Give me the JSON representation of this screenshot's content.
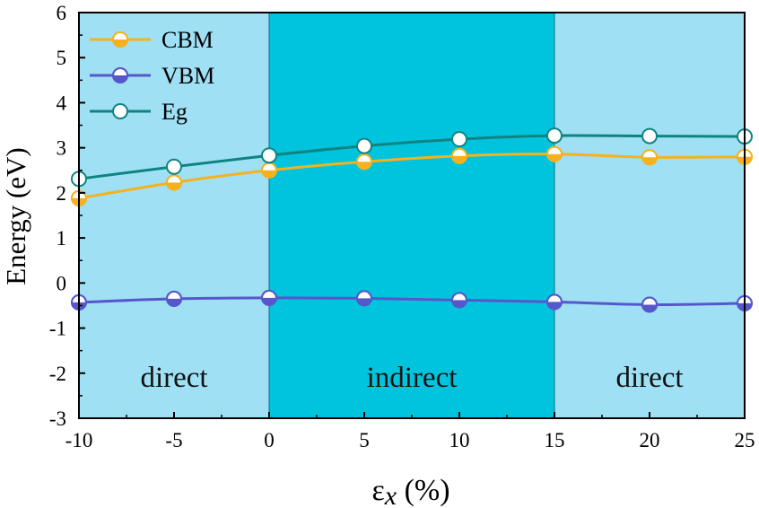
{
  "chart_data": {
    "type": "line",
    "title": "",
    "xlabel_symbol": "ε",
    "xlabel_subscript": "x",
    "xlabel_unit": "(%)",
    "ylabel": "Energy (eV)",
    "xlim": [
      -10,
      25
    ],
    "ylim": [
      -3,
      6
    ],
    "xticks": [
      -10,
      -5,
      0,
      5,
      10,
      15,
      20,
      25
    ],
    "yticks": [
      -3,
      -2,
      -1,
      0,
      1,
      2,
      3,
      4,
      5,
      6
    ],
    "grid": false,
    "legend_position": "top-left",
    "x": [
      -10,
      -5,
      0,
      5,
      10,
      15,
      20,
      25
    ],
    "series": [
      {
        "name": "CBM",
        "color": "#F5B21E",
        "marker_fill": "top-half-white",
        "values": [
          1.88,
          2.23,
          2.5,
          2.69,
          2.82,
          2.86,
          2.79,
          2.8
        ]
      },
      {
        "name": "VBM",
        "color": "#5757CC",
        "marker_fill": "bottom-half-filled",
        "values": [
          -0.43,
          -0.35,
          -0.33,
          -0.34,
          -0.38,
          -0.42,
          -0.48,
          -0.45
        ]
      },
      {
        "name": "Eg",
        "color": "#0E8480",
        "marker_fill": "white",
        "values": [
          2.31,
          2.58,
          2.83,
          3.04,
          3.19,
          3.27,
          3.26,
          3.25
        ]
      }
    ],
    "regions": [
      {
        "label": "direct",
        "from": -10,
        "to": 0,
        "color": "#9FE0F4",
        "label_y": -2.3
      },
      {
        "label": "indirect",
        "from": 0,
        "to": 15,
        "color": "#00C4DD",
        "label_y": -2.3
      },
      {
        "label": "direct",
        "from": 15,
        "to": 25,
        "color": "#9FE0F4",
        "label_y": -2.3
      }
    ]
  }
}
